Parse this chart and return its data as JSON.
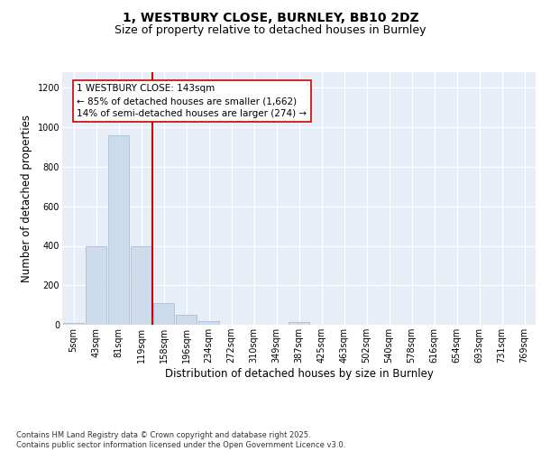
{
  "title_line1": "1, WESTBURY CLOSE, BURNLEY, BB10 2DZ",
  "title_line2": "Size of property relative to detached houses in Burnley",
  "xlabel": "Distribution of detached houses by size in Burnley",
  "ylabel": "Number of detached properties",
  "categories": [
    "5sqm",
    "43sqm",
    "81sqm",
    "119sqm",
    "158sqm",
    "196sqm",
    "234sqm",
    "272sqm",
    "310sqm",
    "349sqm",
    "387sqm",
    "425sqm",
    "463sqm",
    "502sqm",
    "540sqm",
    "578sqm",
    "616sqm",
    "654sqm",
    "693sqm",
    "731sqm",
    "769sqm"
  ],
  "values": [
    10,
    400,
    960,
    400,
    110,
    50,
    20,
    0,
    0,
    0,
    12,
    0,
    0,
    0,
    0,
    0,
    0,
    0,
    0,
    0,
    0
  ],
  "bar_color": "#cddcec",
  "bar_edge_color": "#a8bfd4",
  "vline_color": "#cc0000",
  "vline_pos": 3.5,
  "annotation_text": "1 WESTBURY CLOSE: 143sqm\n← 85% of detached houses are smaller (1,662)\n14% of semi-detached houses are larger (274) →",
  "annotation_box_color": "#ffffff",
  "annotation_box_edge": "#cc0000",
  "ylim": [
    0,
    1280
  ],
  "yticks": [
    0,
    200,
    400,
    600,
    800,
    1000,
    1200
  ],
  "bg_color": "#e8eef8",
  "grid_color": "#ffffff",
  "footnote": "Contains HM Land Registry data © Crown copyright and database right 2025.\nContains public sector information licensed under the Open Government Licence v3.0.",
  "title_fontsize": 10,
  "subtitle_fontsize": 9,
  "axis_label_fontsize": 8.5,
  "tick_fontsize": 7,
  "annot_fontsize": 7.5,
  "footnote_fontsize": 6
}
